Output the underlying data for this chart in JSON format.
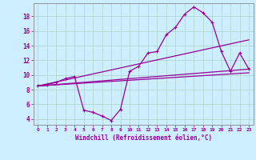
{
  "xlabel": "Windchill (Refroidissement éolien,°C)",
  "background_color": "#cceeff",
  "line_color": "#990099",
  "grid_color": "#aaddcc",
  "xlim": [
    -0.5,
    23.5
  ],
  "ylim": [
    3.2,
    19.8
  ],
  "yticks": [
    4,
    6,
    8,
    10,
    12,
    14,
    16,
    18
  ],
  "xticks": [
    0,
    1,
    2,
    3,
    4,
    5,
    6,
    7,
    8,
    9,
    10,
    11,
    12,
    13,
    14,
    15,
    16,
    17,
    18,
    19,
    20,
    21,
    22,
    23
  ],
  "line1_x": [
    0,
    1,
    2,
    3,
    4,
    5,
    6,
    7,
    8,
    9,
    10,
    11,
    12,
    13,
    14,
    15,
    16,
    17,
    18,
    19,
    20,
    21,
    22,
    23
  ],
  "line1_y": [
    8.5,
    8.7,
    9.0,
    9.5,
    9.8,
    5.2,
    4.9,
    4.4,
    3.8,
    5.3,
    10.5,
    11.2,
    13.0,
    13.2,
    15.5,
    16.5,
    18.3,
    19.3,
    18.5,
    17.2,
    13.2,
    10.5,
    13.0,
    10.8
  ],
  "line2_x": [
    0,
    23
  ],
  "line2_y": [
    8.5,
    14.8
  ],
  "line3_x": [
    0,
    23
  ],
  "line3_y": [
    8.5,
    10.8
  ],
  "line4_x": [
    0,
    23
  ],
  "line4_y": [
    8.5,
    10.3
  ]
}
